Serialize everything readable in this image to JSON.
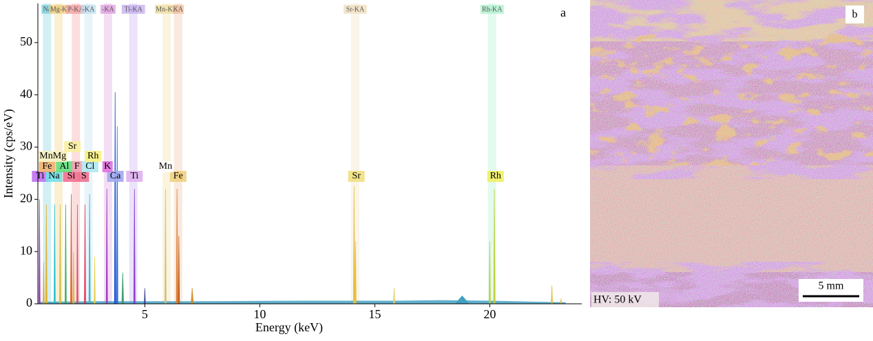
{
  "chart_data": {
    "type": "spectrum",
    "panel_label": "a",
    "xlabel": "Energy (keV)",
    "ylabel": "Intensity (cps/eV)",
    "xlim": [
      0.35,
      24
    ],
    "ylim": [
      0,
      57.5
    ],
    "xticks": [
      5,
      10,
      15,
      20
    ],
    "yticks": [
      0,
      10,
      20,
      30,
      40,
      50
    ],
    "background": {
      "color": "#3a9cc0",
      "x": [
        0.4,
        3,
        5,
        8,
        12,
        16,
        18,
        20,
        22,
        23.3
      ],
      "values": [
        0.4,
        0.5,
        0.5,
        0.5,
        0.6,
        0.6,
        0.7,
        0.6,
        0.4,
        0.3
      ]
    },
    "peaks": {
      "x": [
        0.42,
        0.6,
        0.72,
        1.08,
        1.32,
        1.56,
        1.8,
        1.9,
        2.07,
        2.4,
        2.6,
        2.82,
        3.35,
        3.71,
        3.8,
        4.04,
        4.55,
        5.0,
        5.9,
        6.4,
        6.48,
        7.06,
        14.1,
        14.16,
        15.84,
        18.8,
        20.0,
        20.2,
        22.7,
        23.1
      ],
      "values": [
        20,
        8,
        19,
        19,
        19,
        19,
        21,
        10,
        19,
        19,
        21,
        9,
        22,
        40.5,
        34,
        6,
        22,
        3,
        22,
        22,
        13,
        3,
        22.5,
        12,
        3,
        1.5,
        12,
        22,
        3.5,
        1
      ],
      "widths": [
        0.03,
        0.03,
        0.03,
        0.03,
        0.03,
        0.03,
        0.04,
        0.04,
        0.03,
        0.03,
        0.04,
        0.04,
        0.04,
        0.05,
        0.05,
        0.08,
        0.03,
        0.03,
        0.03,
        0.05,
        0.06,
        0.1,
        0.05,
        0.05,
        0.05,
        0.6,
        0.05,
        0.05,
        0.05,
        0.05
      ],
      "colors": [
        "#9b3fc9",
        "#e0b030",
        "#e0b030",
        "#2ec0d0",
        "#d0c040",
        "#40b060",
        "#e06030",
        "#d0c040",
        "#e05070",
        "#e04060",
        "#40b8d0",
        "#e8d050",
        "#a040c0",
        "#2050d0",
        "#3070e0",
        "#40a070",
        "#8a3fd0",
        "#5050a0",
        "#d0c080",
        "#e08030",
        "#c06020",
        "#d09030",
        "#e8c040",
        "#e8c040",
        "#e0d060",
        "#40a0c0",
        "#c0d040",
        "#c0d040",
        "#e0c040",
        "#e0c040"
      ]
    },
    "line_labels": [
      {
        "text": "Na",
        "energy": 0.75,
        "color": "#7fd0e0"
      },
      {
        "text": "Mg-K",
        "energy": 1.25,
        "color": "#f0d080"
      },
      {
        "text": "P-KA",
        "energy": 2.0,
        "color": "#f4a0a0"
      },
      {
        "text": "-KA",
        "energy": 2.55,
        "color": "#c0e0f0"
      },
      {
        "text": "-KA",
        "energy": 3.4,
        "color": "#e0a0e0"
      },
      {
        "text": "Ti-KA",
        "energy": 4.5,
        "color": "#c8b0f0"
      },
      {
        "text": "Mn-KA",
        "energy": 5.95,
        "color": "#f0e0a0"
      },
      {
        "text": "KA",
        "energy": 6.45,
        "color": "#f0c0a0"
      },
      {
        "text": "Sr-KA",
        "energy": 14.15,
        "color": "#f0e0c0"
      },
      {
        "text": "Rh-KA",
        "energy": 20.1,
        "color": "#b0f0d0"
      }
    ],
    "element_labels": [
      [
        {
          "text": "Ti",
          "energy": 0.45,
          "color": "#c070f0"
        },
        {
          "text": "Na",
          "energy": 1.05,
          "color": "#70e0e8"
        },
        {
          "text": "Si",
          "energy": 1.8,
          "color": "#f07090"
        },
        {
          "text": "S",
          "energy": 2.35,
          "color": "#f07090"
        },
        {
          "text": "Ca",
          "energy": 3.72,
          "color": "#a0a8f0"
        },
        {
          "text": "Ti",
          "energy": 4.55,
          "color": "#e0b0f0"
        },
        {
          "text": "Fe",
          "energy": 6.45,
          "color": "#f0d080"
        },
        {
          "text": "Sr",
          "energy": 14.2,
          "color": "#f0e080"
        },
        {
          "text": "Rh",
          "energy": 20.25,
          "color": "#f0f060"
        }
      ],
      [
        {
          "text": "Fe",
          "energy": 0.75,
          "color": "#f0b070"
        },
        {
          "text": "Al",
          "energy": 1.5,
          "color": "#60e080"
        },
        {
          "text": "F",
          "energy": 2.05,
          "color": "#f0a0b0"
        },
        {
          "text": "Cl",
          "energy": 2.62,
          "color": "#b0e8f0"
        },
        {
          "text": "K",
          "energy": 3.38,
          "color": "#e070e0"
        },
        {
          "text": "Mn",
          "energy": 5.9,
          "color": "#ffffff"
        }
      ],
      [
        {
          "text": "MnMg",
          "energy": 1.0,
          "color": "#f8f0c0"
        },
        {
          "text": "Rh",
          "energy": 2.75,
          "color": "#f8f080"
        }
      ],
      [
        {
          "text": "Sr",
          "energy": 1.85,
          "color": "#f8f0a0"
        }
      ]
    ]
  },
  "image_panel": {
    "label": "b",
    "annotation": "HV: 50 kV",
    "scale_bar": "5 mm"
  }
}
